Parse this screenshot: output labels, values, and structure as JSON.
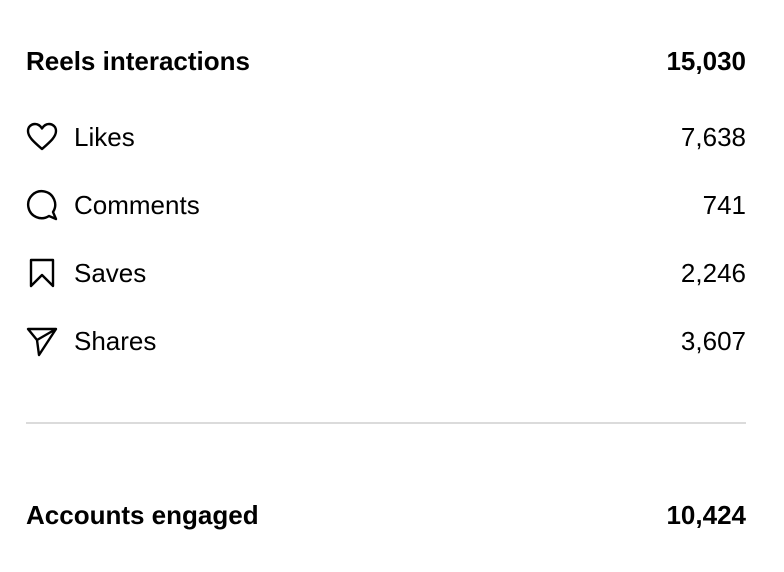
{
  "interactions": {
    "title": "Reels interactions",
    "total": "15,030",
    "rows": [
      {
        "label": "Likes",
        "value": "7,638"
      },
      {
        "label": "Comments",
        "value": "741"
      },
      {
        "label": "Saves",
        "value": "2,246"
      },
      {
        "label": "Shares",
        "value": "3,607"
      }
    ]
  },
  "accounts": {
    "title": "Accounts engaged",
    "total": "10,424"
  }
}
